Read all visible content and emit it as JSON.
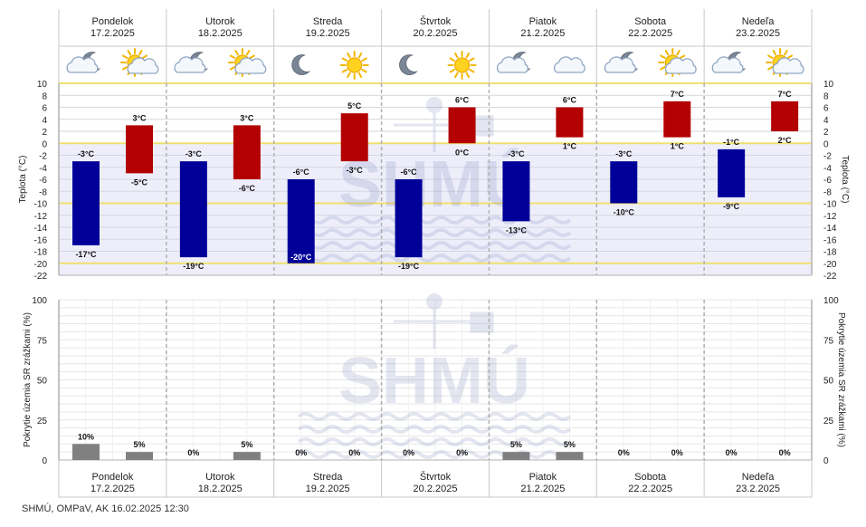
{
  "days": [
    {
      "name": "Pondelok",
      "date": "17.2.2025",
      "night_icon": "cloudy-moon-icon",
      "day_icon": "sun-cloud-icon"
    },
    {
      "name": "Utorok",
      "date": "18.2.2025",
      "night_icon": "cloudy-moon-icon",
      "day_icon": "sun-cloud-icon"
    },
    {
      "name": "Streda",
      "date": "19.2.2025",
      "night_icon": "moon-icon",
      "day_icon": "sun-icon"
    },
    {
      "name": "Štvrtok",
      "date": "20.2.2025",
      "night_icon": "moon-icon",
      "day_icon": "sun-icon"
    },
    {
      "name": "Piatok",
      "date": "21.2.2025",
      "night_icon": "cloudy-moon-icon",
      "day_icon": "cloud-icon"
    },
    {
      "name": "Sobota",
      "date": "22.2.2025",
      "night_icon": "cloudy-moon-icon",
      "day_icon": "sun-cloud-icon"
    },
    {
      "name": "Nedeľa",
      "date": "23.2.2025",
      "night_icon": "cloudy-moon-icon",
      "day_icon": "sun-cloud-icon"
    }
  ],
  "watermark": "SHMÚ",
  "footer": "SHMÚ, OMPaV, AK 16.02.2025 12:30",
  "colors": {
    "night_bar": "#000099",
    "day_bar": "#b30000",
    "precip_bar": "#808080",
    "highlight_line": "#f0e070",
    "band_fill": "#eeeefb"
  },
  "chart_data": [
    {
      "type": "bar",
      "title": "",
      "xlabel": "",
      "ylabel": "Teplota (°C)",
      "unit": "°C",
      "ylim": [
        -22,
        10
      ],
      "y_ticks": [
        10,
        8,
        6,
        4,
        2,
        0,
        -2,
        -4,
        -6,
        -8,
        -10,
        -12,
        -14,
        -16,
        -18,
        -20,
        -22
      ],
      "grid": true,
      "highlight_lines": [
        10,
        0,
        -10,
        -20
      ],
      "categories": [
        "17.2.2025",
        "18.2.2025",
        "19.2.2025",
        "20.2.2025",
        "21.2.2025",
        "22.2.2025",
        "23.2.2025"
      ],
      "series": [
        {
          "values_min": [
            -17,
            -19,
            -20,
            -19,
            -13,
            -10,
            -9
          ],
          "values_max": [
            -3,
            -3,
            -6,
            -6,
            -3,
            -3,
            -1
          ]
        },
        {
          "values_min": [
            -5,
            -6,
            -3,
            0,
            1,
            1,
            2
          ],
          "values_max": [
            3,
            3,
            5,
            6,
            6,
            7,
            7
          ]
        }
      ]
    },
    {
      "type": "bar",
      "title": "",
      "xlabel": "",
      "ylabel": "Pokrytie územia SR zrážkami (%)",
      "unit": "%",
      "ylim": [
        0,
        100
      ],
      "y_ticks": [
        100,
        75,
        50,
        25,
        0
      ],
      "grid": true,
      "categories": [
        "17.2.2025",
        "18.2.2025",
        "19.2.2025",
        "20.2.2025",
        "21.2.2025",
        "22.2.2025",
        "23.2.2025"
      ],
      "series": [
        {
          "values": [
            10,
            0,
            0,
            0,
            5,
            0,
            0
          ]
        },
        {
          "values": [
            5,
            5,
            0,
            0,
            5,
            0,
            0
          ]
        }
      ]
    }
  ]
}
